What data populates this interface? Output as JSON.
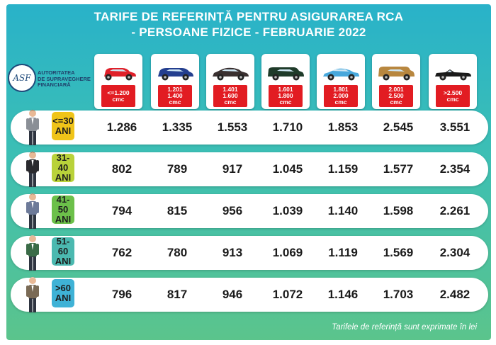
{
  "title_line1": "TARIFE DE REFERINȚĂ PENTRU ASIGURAREA RCA",
  "title_line2": "- PERSOANE FIZICE - FEBRUARIE 2022",
  "logo": {
    "seal_text": "ASF",
    "line1": "AUTORITATEA",
    "line2": "DE SUPRAVEGHERE",
    "line3": "FINANCIARĂ"
  },
  "engine_categories": [
    {
      "line1": "<=1.200",
      "line2": "cmc",
      "line3": "",
      "car_color": "#e0202a",
      "car_icon": "hatchback-icon"
    },
    {
      "line1": "1.201",
      "line2": "1.400",
      "line3": "cmc",
      "car_color": "#243f8f",
      "car_icon": "compact-suv-icon"
    },
    {
      "line1": "1.401",
      "line2": "1.600",
      "line3": "cmc",
      "car_color": "#3a3030",
      "car_icon": "sedan-icon"
    },
    {
      "line1": "1.601",
      "line2": "1.800",
      "line3": "cmc",
      "car_color": "#1f3b2a",
      "car_icon": "estate-car-icon"
    },
    {
      "line1": "1.801",
      "line2": "2.000",
      "line3": "cmc",
      "car_color": "#48a8dc",
      "car_icon": "sports-sedan-icon"
    },
    {
      "line1": "2.001",
      "line2": "2.500",
      "line3": "cmc",
      "car_color": "#b8873f",
      "car_icon": "suv-icon"
    },
    {
      "line1": ">2.500",
      "line2": "cmc",
      "line3": "",
      "car_color": "#1a1a1a",
      "car_icon": "convertible-icon"
    }
  ],
  "age_groups": [
    {
      "line1": "<=30",
      "line2": "ANI",
      "badge_color": "#f0c419",
      "person_icon": "young-man-icon",
      "values": [
        "1.286",
        "1.335",
        "1.553",
        "1.710",
        "1.853",
        "2.545",
        "3.551"
      ]
    },
    {
      "line1": "31-40",
      "line2": "ANI",
      "badge_color": "#b9d23a",
      "person_icon": "man-in-suit-icon",
      "values": [
        "802",
        "789",
        "917",
        "1.045",
        "1.159",
        "1.577",
        "2.354"
      ]
    },
    {
      "line1": "41-50",
      "line2": "ANI",
      "badge_color": "#6cc04a",
      "person_icon": "middle-aged-man-icon",
      "values": [
        "794",
        "815",
        "956",
        "1.039",
        "1.140",
        "1.598",
        "2.261"
      ]
    },
    {
      "line1": "51-60",
      "line2": "ANI",
      "badge_color": "#4bb9b0",
      "person_icon": "man-with-vest-icon",
      "values": [
        "762",
        "780",
        "913",
        "1.069",
        "1.119",
        "1.569",
        "2.304"
      ]
    },
    {
      "line1": ">60",
      "line2": "ANI",
      "badge_color": "#3fb2d6",
      "person_icon": "elderly-man-icon",
      "values": [
        "796",
        "817",
        "946",
        "1.072",
        "1.146",
        "1.703",
        "2.482"
      ]
    }
  ],
  "footer_note": "Tarifele de referință sunt exprimate în lei"
}
